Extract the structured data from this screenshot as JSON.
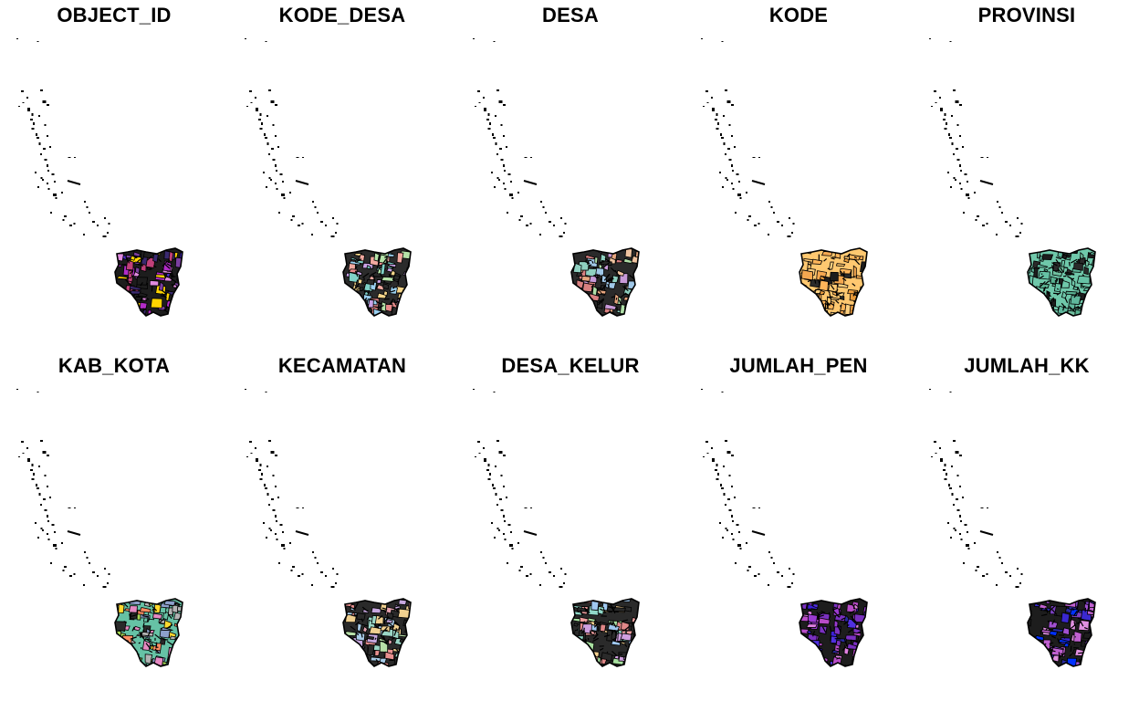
{
  "figure": {
    "panels": [
      {
        "title": "OBJECT_ID",
        "palette": [
          "#b22cc8",
          "#4b2cc8",
          "#e08bdf",
          "#1d1d1d",
          "#7b3fa0",
          "#ffd400",
          "#3a2a70",
          "#c0407a"
        ]
      },
      {
        "title": "KODE_DESA",
        "palette": [
          "#f2a9a0",
          "#7fd1c7",
          "#c9a2e6",
          "#2b2b2b",
          "#f5d58a",
          "#9ad0f0",
          "#e88b8b",
          "#b5e3a8"
        ]
      },
      {
        "title": "DESA",
        "palette": [
          "#e6a57e",
          "#8fd0c0",
          "#c89ad8",
          "#2a2a2a",
          "#f0c4a0",
          "#a0c8e8",
          "#d88080",
          "#b0e0a8"
        ]
      },
      {
        "title": "KODE",
        "palette": [
          "#ffb55a",
          "#f0a040",
          "#2a2a2a",
          "#ffc870",
          "#e89a3a",
          "#ffd080",
          "#1d1d1d",
          "#f5a850"
        ]
      },
      {
        "title": "PROVINSI",
        "palette": [
          "#66c2a5",
          "#5fb89c",
          "#2a2a2a",
          "#6fc8aa",
          "#1d1d1d",
          "#70c0a0",
          "#58b090",
          "#66c2a5"
        ]
      },
      {
        "title": "KAB_KOTA",
        "palette": [
          "#a6d854",
          "#8da0cb",
          "#e78ac3",
          "#66c2a5",
          "#2a2a2a",
          "#fc8d62",
          "#b3b3b3",
          "#ffd92f"
        ]
      },
      {
        "title": "KECAMATAN",
        "palette": [
          "#e5a3b0",
          "#9ad6c6",
          "#c8a8e0",
          "#2a2a2a",
          "#f0d090",
          "#a8cce8",
          "#e89090",
          "#b8e0a8"
        ]
      },
      {
        "title": "DESA_KELUR",
        "palette": [
          "#f0a0a0",
          "#90d8c8",
          "#d0a0e0",
          "#2a2a2a",
          "#f5d090",
          "#a0c8f0",
          "#e08888",
          "#a8e0a0"
        ]
      },
      {
        "title": "JUMLAH_PEN",
        "palette": [
          "#3c1fd8",
          "#b84cc8",
          "#7a30c0",
          "#1d1d1d",
          "#e080e0",
          "#2a2aa0",
          "#9a3ad0",
          "#5030e0"
        ]
      },
      {
        "title": "JUMLAH_KK",
        "palette": [
          "#3a28d0",
          "#c060d0",
          "#7a40c0",
          "#1d1d1d",
          "#e090e0",
          "#2a2aa0",
          "#0030ff",
          "#a050d0"
        ]
      }
    ]
  }
}
